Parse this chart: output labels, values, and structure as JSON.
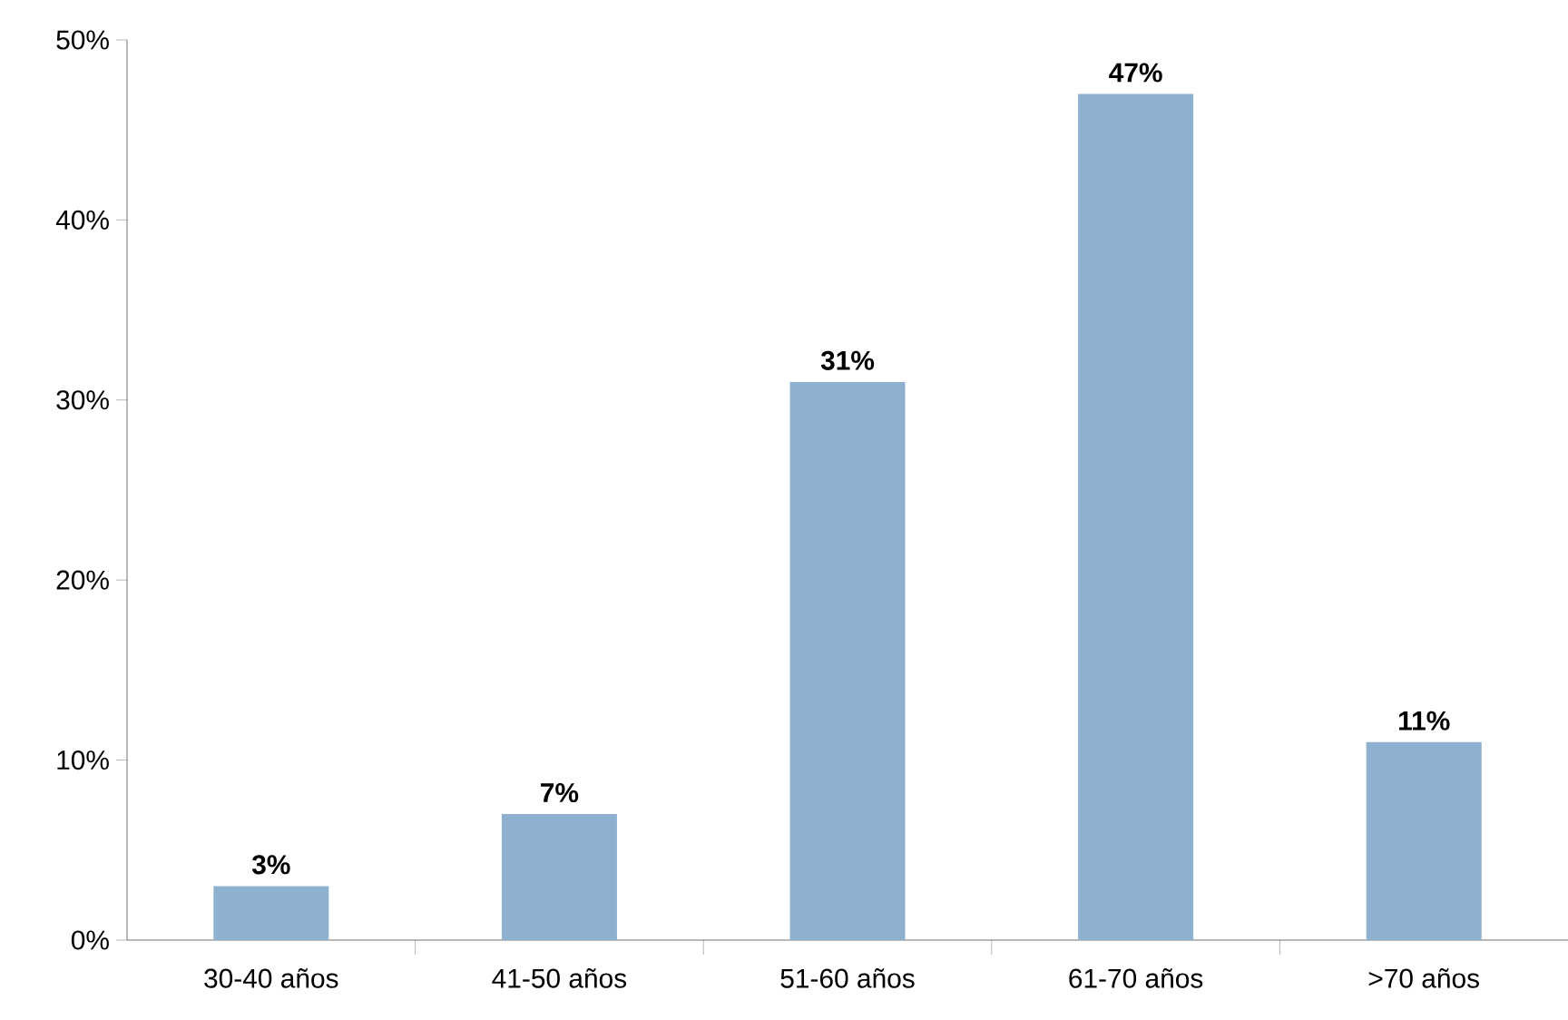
{
  "chart_data": {
    "type": "bar",
    "categories": [
      "30-40 años",
      "41-50 años",
      "51-60 años",
      "61-70 años",
      ">70 años"
    ],
    "values": [
      3,
      7,
      31,
      47,
      11
    ],
    "value_labels": [
      "3%",
      "7%",
      "31%",
      "47%",
      "11%"
    ],
    "color": "#8fb1d0",
    "ylim": [
      0,
      50
    ],
    "yticks": [
      {
        "value": 0,
        "label": "0%"
      },
      {
        "value": 10,
        "label": "10%"
      },
      {
        "value": 20,
        "label": "20%"
      },
      {
        "value": 30,
        "label": "30%"
      },
      {
        "value": 40,
        "label": "40%"
      },
      {
        "value": 50,
        "label": "50%"
      }
    ],
    "grid": false
  }
}
